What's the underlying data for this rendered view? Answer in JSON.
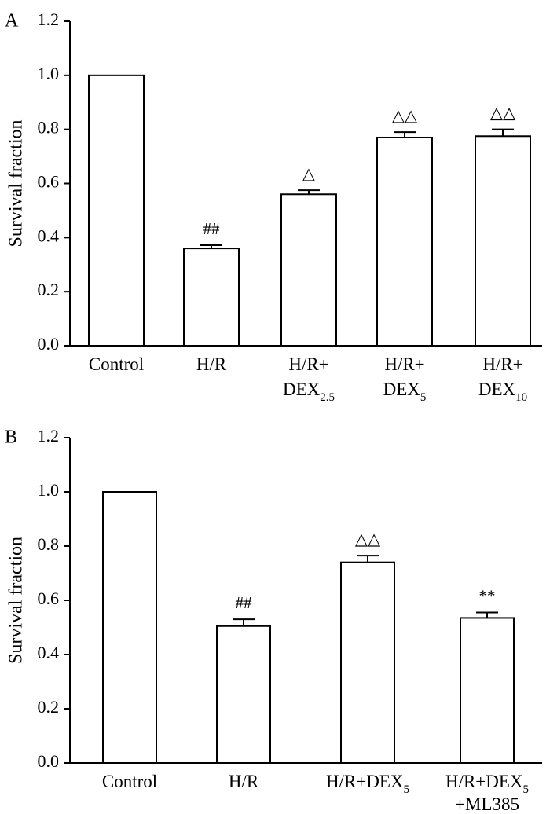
{
  "chart_data": [
    {
      "panel_label": "A",
      "type": "bar",
      "ylabel": "Survival fraction",
      "ylim": [
        0,
        1.2
      ],
      "yticks": [
        "0.0",
        "0.2",
        "0.4",
        "0.6",
        "0.8",
        "1.0",
        "1.2"
      ],
      "categories": [
        {
          "lines": [
            {
              "text": "Control",
              "sub": ""
            }
          ]
        },
        {
          "lines": [
            {
              "text": "H/R",
              "sub": ""
            }
          ]
        },
        {
          "lines": [
            {
              "text": "H/R+",
              "sub": ""
            },
            {
              "text": "DEX",
              "sub": "2.5"
            }
          ]
        },
        {
          "lines": [
            {
              "text": "H/R+",
              "sub": ""
            },
            {
              "text": "DEX",
              "sub": "5"
            }
          ]
        },
        {
          "lines": [
            {
              "text": "H/R+",
              "sub": ""
            },
            {
              "text": "DEX",
              "sub": "10"
            }
          ]
        }
      ],
      "values": [
        1.0,
        0.36,
        0.56,
        0.77,
        0.775
      ],
      "errors": [
        0,
        0.012,
        0.015,
        0.02,
        0.025
      ],
      "annotations": [
        "",
        "##",
        "△",
        "△△",
        "△△"
      ]
    },
    {
      "panel_label": "B",
      "type": "bar",
      "ylabel": "Survival fraction",
      "ylim": [
        0,
        1.2
      ],
      "yticks": [
        "0.0",
        "0.2",
        "0.4",
        "0.6",
        "0.8",
        "1.0",
        "1.2"
      ],
      "categories": [
        {
          "lines": [
            {
              "text": "Control",
              "sub": ""
            }
          ]
        },
        {
          "lines": [
            {
              "text": "H/R",
              "sub": ""
            }
          ]
        },
        {
          "lines": [
            {
              "text": "H/R+DEX",
              "sub": "5"
            }
          ]
        },
        {
          "lines": [
            {
              "text": "H/R+DEX",
              "sub": "5"
            },
            {
              "text": "+ML385",
              "sub": ""
            }
          ]
        }
      ],
      "values": [
        1.0,
        0.505,
        0.74,
        0.535
      ],
      "errors": [
        0,
        0.025,
        0.025,
        0.02
      ],
      "annotations": [
        "",
        "##",
        "△△",
        "**"
      ]
    }
  ]
}
